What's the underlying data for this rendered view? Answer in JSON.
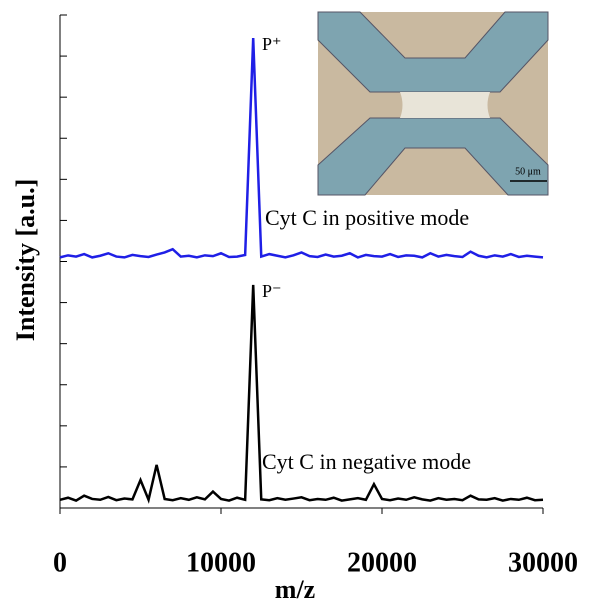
{
  "chart_data": {
    "type": "line",
    "ylabel": "Intensity [a.u.]",
    "xlabel": "m/z",
    "x": [
      0,
      500,
      1000,
      1500,
      2000,
      2500,
      3000,
      3500,
      4000,
      4500,
      5000,
      5500,
      6000,
      6500,
      7000,
      7500,
      8000,
      8500,
      9000,
      9500,
      10000,
      10500,
      11000,
      11500,
      12000,
      12500,
      13000,
      13500,
      14000,
      14500,
      15000,
      15500,
      16000,
      16500,
      17000,
      17500,
      18000,
      18500,
      19000,
      19500,
      20000,
      20500,
      21000,
      21500,
      22000,
      22500,
      23000,
      23500,
      24000,
      24500,
      25000,
      25500,
      26000,
      26500,
      27000,
      27500,
      28000,
      28500,
      29000,
      29500,
      30000
    ],
    "series": [
      {
        "name": "Cyt C in positive mode",
        "color": "#1f1fe6",
        "values": [
          6.1,
          6.15,
          6.12,
          6.18,
          6.1,
          6.14,
          6.2,
          6.12,
          6.1,
          6.16,
          6.13,
          6.11,
          6.17,
          6.22,
          6.3,
          6.12,
          6.14,
          6.1,
          6.15,
          6.13,
          6.2,
          6.11,
          6.12,
          6.16,
          11.44,
          6.12,
          6.18,
          6.14,
          6.1,
          6.15,
          6.22,
          6.13,
          6.11,
          6.17,
          6.12,
          6.14,
          6.2,
          6.1,
          6.16,
          6.13,
          6.12,
          6.18,
          6.11,
          6.15,
          6.14,
          6.1,
          6.2,
          6.12,
          6.16,
          6.13,
          6.11,
          6.24,
          6.14,
          6.1,
          6.15,
          6.12,
          6.18,
          6.11,
          6.14,
          6.12,
          6.1
        ]
      },
      {
        "name": "Cyt C in negative mode",
        "color": "#000000",
        "values": [
          0.2,
          0.25,
          0.18,
          0.3,
          0.22,
          0.2,
          0.27,
          0.19,
          0.23,
          0.21,
          0.68,
          0.2,
          1.05,
          0.22,
          0.19,
          0.24,
          0.2,
          0.26,
          0.21,
          0.4,
          0.22,
          0.18,
          0.25,
          0.2,
          5.43,
          0.21,
          0.19,
          0.24,
          0.2,
          0.23,
          0.26,
          0.19,
          0.22,
          0.2,
          0.25,
          0.18,
          0.21,
          0.24,
          0.2,
          0.58,
          0.22,
          0.19,
          0.23,
          0.2,
          0.26,
          0.21,
          0.18,
          0.24,
          0.2,
          0.22,
          0.19,
          0.3,
          0.21,
          0.2,
          0.24,
          0.18,
          0.22,
          0.2,
          0.25,
          0.19,
          0.2
        ]
      }
    ],
    "annotations": [
      "P⁺",
      "P⁻"
    ],
    "xlim": [
      0,
      30000
    ],
    "xticks": [
      0,
      10000,
      20000,
      30000
    ],
    "ylim": [
      0,
      12
    ],
    "yticks": [
      0,
      1,
      2,
      3,
      4,
      5,
      6,
      7,
      8,
      9,
      10,
      11,
      12
    ],
    "inset": {
      "scale_label": "50 μm"
    }
  }
}
